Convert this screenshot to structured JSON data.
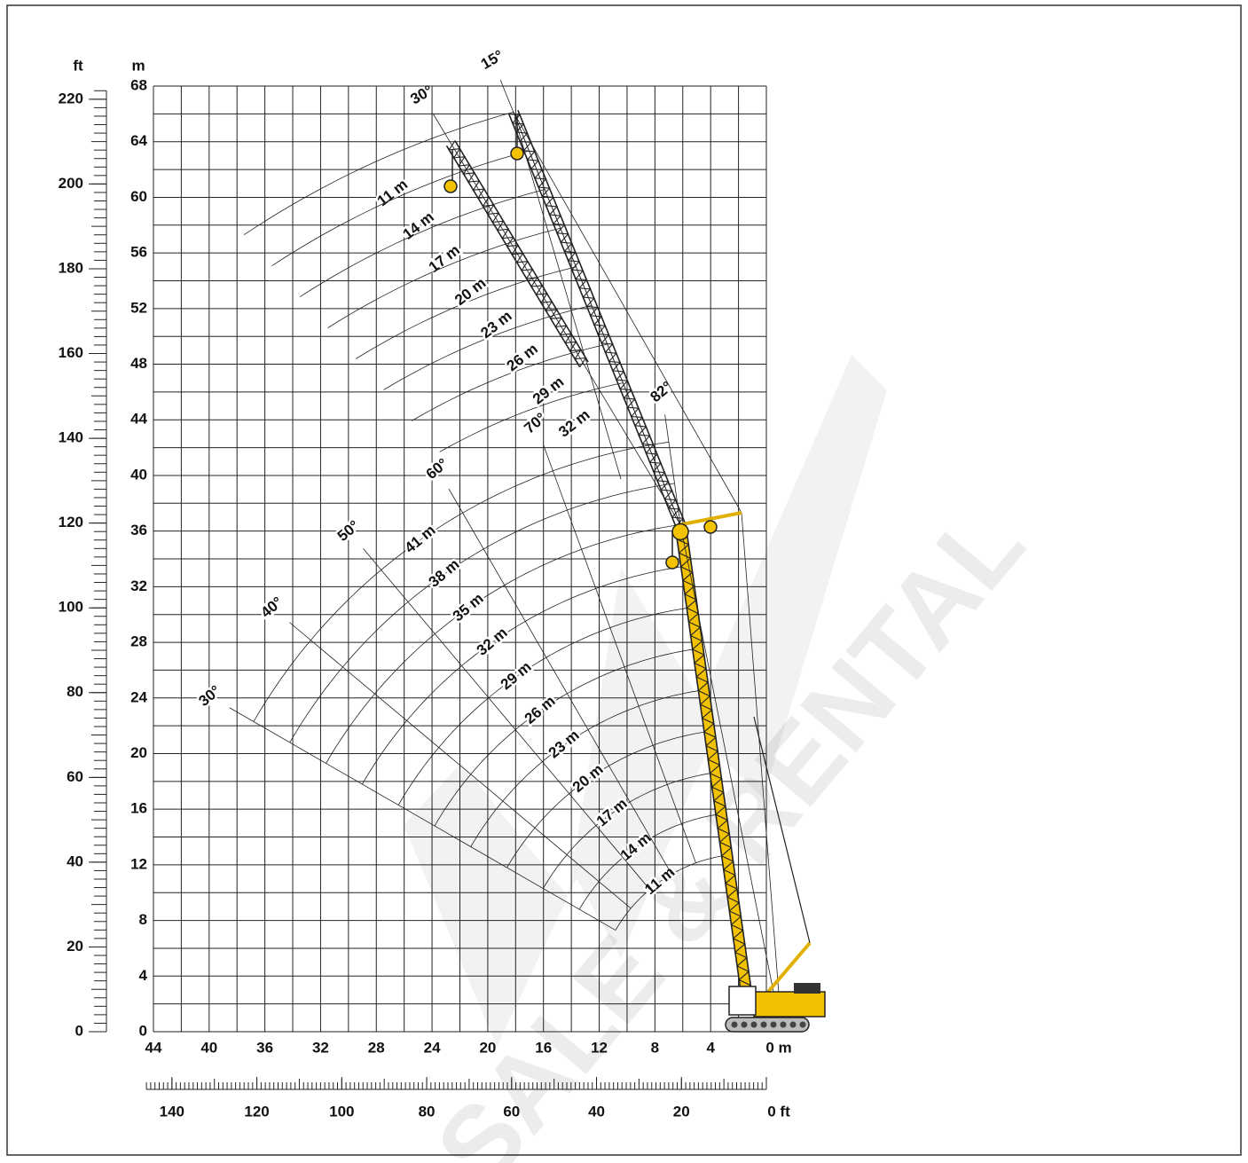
{
  "axes": {
    "ft_unit": "ft",
    "m_unit": "m",
    "m_ticks": [
      0,
      4,
      8,
      12,
      16,
      20,
      24,
      28,
      32,
      36,
      40,
      44,
      48,
      52,
      56,
      60,
      64,
      68
    ],
    "ft_ticks": [
      0,
      20,
      40,
      60,
      80,
      100,
      120,
      140,
      160,
      180,
      200,
      220
    ],
    "radius_m_ticks": [
      44,
      40,
      36,
      32,
      28,
      24,
      20,
      16,
      12,
      8,
      4,
      {
        "value": 0,
        "label": "0 m"
      }
    ],
    "radius_ft_ticks": [
      140,
      120,
      100,
      80,
      60,
      40,
      20,
      {
        "value": 0,
        "label": "0 ft"
      }
    ]
  },
  "boom_angles": [
    "30°",
    "40°",
    "50°",
    "60°",
    "70°",
    "82°"
  ],
  "boom_lengths": [
    "11 m",
    "14 m",
    "17 m",
    "20 m",
    "23 m",
    "26 m",
    "29 m",
    "32 m",
    "35 m",
    "38 m",
    "41 m"
  ],
  "jib_offsets": [
    "15°",
    "30°"
  ],
  "jib_lengths": [
    "11 m",
    "14 m",
    "17 m",
    "20 m",
    "23 m",
    "26 m",
    "29 m",
    "32 m"
  ],
  "watermark": "SALE & RENTAL"
}
